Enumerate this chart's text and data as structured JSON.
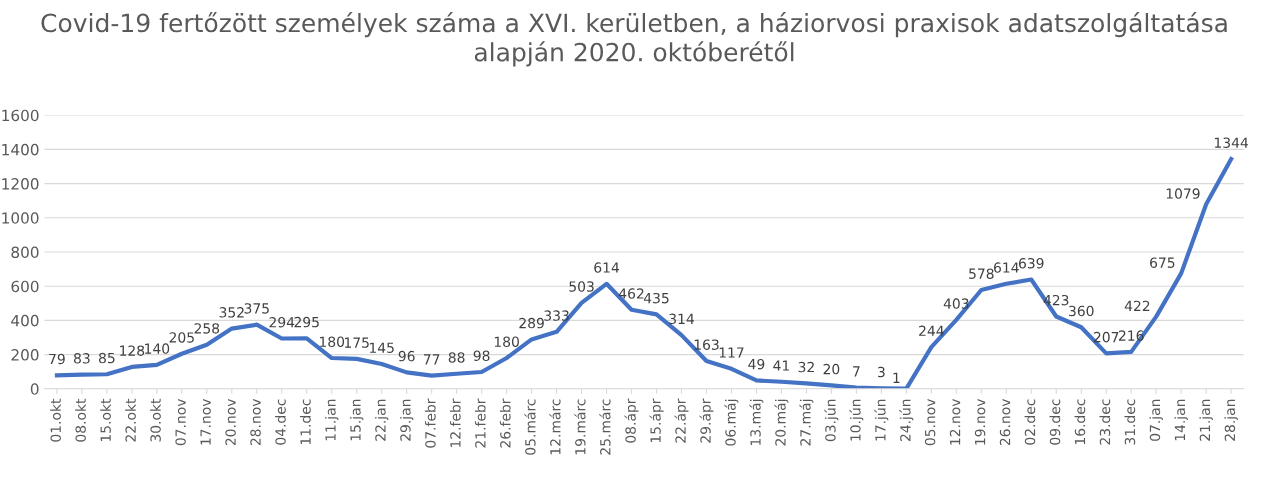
{
  "chart_data": {
    "type": "line",
    "title": "Covid-19 fertőzött személyek száma a XVI. kerületben, a háziorvosi praxisok adatszolgáltatása alapján 2020. októberétől",
    "categories": [
      "01.okt",
      "08.okt",
      "15.okt",
      "22.okt",
      "30.okt",
      "07.nov",
      "17.nov",
      "20.nov",
      "28.nov",
      "04.dec",
      "11.dec",
      "11.jan",
      "15.jan",
      "22.jan",
      "29.jan",
      "07.febr",
      "12.febr",
      "21.febr",
      "26.febr",
      "05.márc",
      "12.márc",
      "19.márc",
      "25.márc",
      "08.ápr",
      "15.ápr",
      "22.ápr",
      "29.ápr",
      "06.máj",
      "13.máj",
      "20.máj",
      "27.máj",
      "03.jún",
      "10.jún",
      "17.jún",
      "24.jún",
      "05.nov",
      "12.nov",
      "19.nov",
      "26.nov",
      "02.dec",
      "09.dec",
      "16.dec",
      "23.dec",
      "31.dec",
      "07.jan",
      "14.jan",
      "21.jan",
      "28.jan"
    ],
    "series": [
      {
        "color": "#4472c4",
        "values": [
          79,
          83,
          85,
          128,
          140,
          205,
          258,
          352,
          375,
          294,
          295,
          180,
          175,
          145,
          96,
          77,
          88,
          98,
          180,
          289,
          333,
          503,
          614,
          462,
          435,
          314,
          163,
          117,
          49,
          41,
          32,
          20,
          7,
          3,
          1,
          244,
          403,
          578,
          614,
          639,
          423,
          360,
          207,
          216,
          422,
          675,
          1079,
          1344
        ]
      }
    ],
    "ylim": [
      0,
      1600
    ],
    "yticks": [
      0,
      200,
      400,
      600,
      800,
      1000,
      1200,
      1400,
      1600
    ],
    "grid": "y",
    "data_labels": true,
    "marker": "none",
    "line_style": "solid",
    "legend": false
  }
}
